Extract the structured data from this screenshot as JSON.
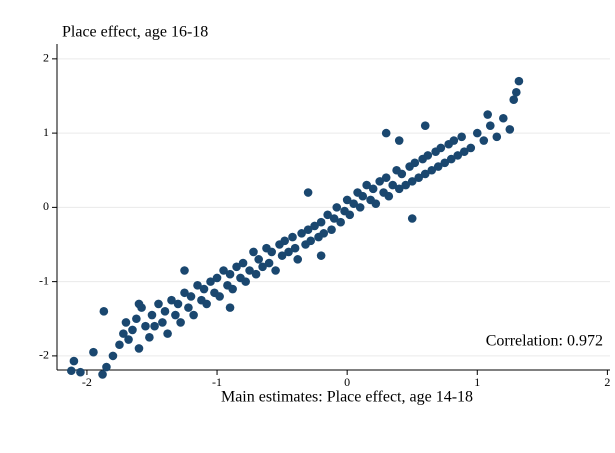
{
  "chart_data": {
    "type": "scatter",
    "title": "Place effect, age 16-18",
    "x_label": "Main estimates: Place effect, age 14-18",
    "annotation": "Correlation: 0.972",
    "color": "#1a476f",
    "grid": true,
    "xlim": [
      -2.23,
      2.02
    ],
    "xticks": [
      -2,
      -1,
      0,
      1,
      2
    ],
    "ylim": [
      -2.19,
      2.2
    ],
    "yticks": [
      -2,
      -1,
      0,
      1,
      2
    ],
    "x": [
      -2.12,
      -2.1,
      -2.05,
      -1.95,
      -1.88,
      -1.85,
      -1.87,
      -1.8,
      -1.75,
      -1.72,
      -1.7,
      -1.68,
      -1.65,
      -1.62,
      -1.6,
      -1.58,
      -1.55,
      -1.52,
      -1.5,
      -1.48,
      -1.45,
      -1.42,
      -1.4,
      -1.38,
      -1.35,
      -1.32,
      -1.3,
      -1.28,
      -1.25,
      -1.22,
      -1.2,
      -1.18,
      -1.15,
      -1.12,
      -1.1,
      -1.08,
      -1.05,
      -1.02,
      -1.0,
      -0.98,
      -0.95,
      -0.92,
      -0.9,
      -0.88,
      -0.85,
      -0.82,
      -0.8,
      -0.78,
      -0.75,
      -0.72,
      -0.7,
      -0.68,
      -0.65,
      -0.62,
      -0.6,
      -0.58,
      -0.55,
      -0.52,
      -0.5,
      -0.48,
      -0.45,
      -0.42,
      -0.4,
      -0.38,
      -0.35,
      -0.32,
      -0.3,
      -0.28,
      -0.25,
      -0.22,
      -0.2,
      -0.18,
      -0.15,
      -0.12,
      -0.1,
      -0.08,
      -0.05,
      -0.02,
      0.0,
      0.02,
      0.05,
      0.08,
      0.1,
      0.12,
      0.15,
      0.18,
      0.2,
      0.22,
      0.25,
      0.28,
      0.3,
      0.32,
      0.35,
      0.38,
      0.4,
      0.42,
      0.45,
      0.48,
      0.5,
      0.52,
      0.55,
      0.58,
      0.6,
      0.62,
      0.65,
      0.68,
      0.7,
      0.72,
      0.75,
      0.78,
      0.8,
      0.82,
      0.85,
      0.88,
      0.9,
      0.95,
      1.0,
      1.05,
      1.1,
      1.15,
      1.2,
      1.28,
      1.3,
      1.32,
      1.25,
      1.08,
      0.3,
      0.5,
      -1.25,
      -0.2,
      -0.9,
      0.6,
      -1.6,
      -0.3,
      0.4
    ],
    "y": [
      -2.2,
      -2.07,
      -2.22,
      -1.95,
      -2.25,
      -2.15,
      -1.4,
      -2.0,
      -1.85,
      -1.7,
      -1.55,
      -1.78,
      -1.65,
      -1.5,
      -1.9,
      -1.35,
      -1.6,
      -1.75,
      -1.45,
      -1.6,
      -1.3,
      -1.55,
      -1.4,
      -1.7,
      -1.25,
      -1.45,
      -1.3,
      -1.55,
      -1.15,
      -1.35,
      -1.2,
      -1.45,
      -1.05,
      -1.25,
      -1.1,
      -1.3,
      -1.0,
      -1.15,
      -0.95,
      -1.2,
      -0.85,
      -1.05,
      -0.9,
      -1.1,
      -0.8,
      -0.95,
      -0.75,
      -1.0,
      -0.85,
      -0.6,
      -0.9,
      -0.7,
      -0.8,
      -0.55,
      -0.75,
      -0.6,
      -0.85,
      -0.5,
      -0.65,
      -0.45,
      -0.6,
      -0.4,
      -0.55,
      -0.7,
      -0.35,
      -0.5,
      -0.3,
      -0.45,
      -0.25,
      -0.4,
      -0.2,
      -0.35,
      -0.1,
      -0.3,
      -0.15,
      0.0,
      -0.2,
      -0.05,
      0.1,
      -0.1,
      0.05,
      0.2,
      0.0,
      0.15,
      0.3,
      0.1,
      0.25,
      0.05,
      0.35,
      0.2,
      0.4,
      0.15,
      0.3,
      0.5,
      0.25,
      0.45,
      0.3,
      0.55,
      0.35,
      0.6,
      0.4,
      0.65,
      0.45,
      0.7,
      0.5,
      0.75,
      0.55,
      0.8,
      0.6,
      0.85,
      0.65,
      0.9,
      0.7,
      0.95,
      0.75,
      0.8,
      1.0,
      0.9,
      1.1,
      0.95,
      1.2,
      1.45,
      1.55,
      1.7,
      1.05,
      1.25,
      1.0,
      -0.15,
      -0.85,
      -0.65,
      -1.35,
      1.1,
      -1.3,
      0.2,
      0.9
    ]
  }
}
